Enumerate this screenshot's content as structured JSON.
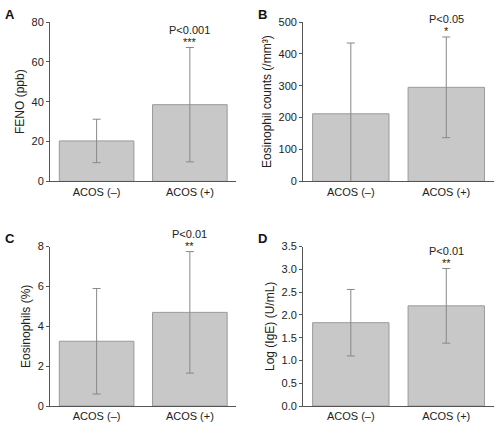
{
  "chart_data": [
    {
      "type": "bar",
      "title": "A",
      "y_label": "FENO (ppb)",
      "categories": [
        "ACOS (–)",
        "ACOS (+)"
      ],
      "values": [
        20.3,
        38.5
      ],
      "errors": [
        10.9,
        28.7
      ],
      "color": "#c8c8c8",
      "ylim": [
        0,
        80
      ],
      "yticks": [
        0,
        20,
        40,
        60,
        80
      ],
      "annotations": [
        {
          "category": "ACOS (+)",
          "texts": [
            "P<0.001",
            "***"
          ]
        }
      ]
    },
    {
      "type": "bar",
      "title": "B",
      "y_label": "Eosinophil counts (/mm³)",
      "categories": [
        "ACOS (–)",
        "ACOS (+)"
      ],
      "values": [
        212,
        295
      ],
      "errors": [
        222,
        158
      ],
      "color": "#c8c8c8",
      "ylim": [
        0,
        500
      ],
      "yticks": [
        0,
        100,
        200,
        300,
        400,
        500
      ],
      "annotations": [
        {
          "category": "ACOS (+)",
          "texts": [
            "P<0.05",
            "*"
          ]
        }
      ]
    },
    {
      "type": "bar",
      "title": "C",
      "y_label": "Eosinophils (%)",
      "categories": [
        "ACOS (–)",
        "ACOS (+)"
      ],
      "values": [
        3.25,
        4.7
      ],
      "errors": [
        2.65,
        3.05
      ],
      "color": "#c8c8c8",
      "ylim": [
        0,
        8
      ],
      "yticks": [
        0,
        2,
        4,
        6,
        8
      ],
      "annotations": [
        {
          "category": "ACOS (+)",
          "texts": [
            "P<0.01",
            "**"
          ]
        }
      ]
    },
    {
      "type": "bar",
      "title": "D",
      "y_label": "Log (IgE) (U/mL)",
      "categories": [
        "ACOS (–)",
        "ACOS (+)"
      ],
      "values": [
        1.83,
        2.2
      ],
      "errors": [
        0.73,
        0.82
      ],
      "color": "#c8c8c8",
      "ylim": [
        0,
        3.5
      ],
      "yticks": [
        {
          "value": 0,
          "label": "0.0"
        },
        0.5,
        {
          "value": 1,
          "label": "1.0"
        },
        1.5,
        {
          "value": 2,
          "label": "2.0"
        },
        2.5,
        {
          "value": 3,
          "label": "3.0"
        },
        3.5
      ],
      "annotations": [
        {
          "category": "ACOS (+)",
          "texts": [
            "P<0.01",
            "**"
          ]
        }
      ]
    }
  ]
}
